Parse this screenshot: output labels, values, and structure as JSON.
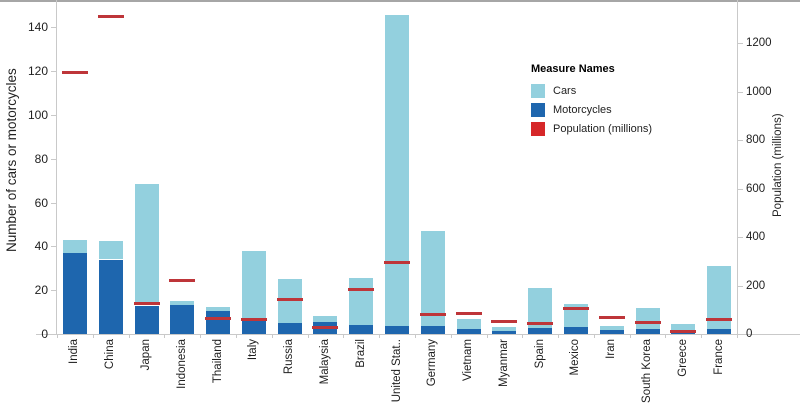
{
  "chart_data": {
    "type": "bar",
    "stacked": true,
    "orientation": "vertical",
    "grid": false,
    "legend_position": "inside-right-upper",
    "categories": [
      "India",
      "China",
      "Japan",
      "Indonesia",
      "Thailand",
      "Italy",
      "Russia",
      "Malaysia",
      "Brazil",
      "United Stat..",
      "Germany",
      "Vietnam",
      "Myanmar",
      "Spain",
      "Mexico",
      "Iran",
      "South Korea",
      "Greece",
      "France"
    ],
    "series": [
      {
        "name": "Motorcycles",
        "color": "#1E66AE",
        "axis": "left",
        "values": [
          37,
          34,
          13,
          13.3,
          10.3,
          6,
          5,
          5.4,
          4,
          3.5,
          3.8,
          2.4,
          1.5,
          2.8,
          3.1,
          1.9,
          2.4,
          1.1,
          2.1
        ]
      },
      {
        "name": "Cars",
        "color": "#93D0DE",
        "axis": "left",
        "values": [
          6,
          8.5,
          55.5,
          1.7,
          2,
          32,
          20,
          2.7,
          21.5,
          142,
          43.2,
          4.5,
          1.6,
          18.1,
          10.8,
          2,
          9.6,
          3.4,
          28.9
        ]
      }
    ],
    "overlay_series": {
      "name": "Population (millions)",
      "mark": "line-segment",
      "color": "#BE3539",
      "axis": "right",
      "values": [
        1080,
        1310,
        128,
        220,
        63,
        58,
        143,
        25,
        184,
        296,
        82,
        83,
        50,
        43,
        106,
        69,
        48,
        11,
        60
      ]
    },
    "left_axis": {
      "title": "Number of cars or motorcycles",
      "ticks": [
        0,
        20,
        40,
        60,
        80,
        100,
        120,
        140
      ],
      "scale_max": 152.4
    },
    "right_axis": {
      "title": "Population (millions)",
      "ticks": [
        0,
        200,
        400,
        600,
        800,
        1000,
        1200
      ],
      "scale_max": 1378
    },
    "legend": {
      "title": "Measure Names",
      "items": [
        {
          "label": "Cars",
          "color": "#93D0DE"
        },
        {
          "label": "Motorcycles",
          "color": "#1E66AE"
        },
        {
          "label": "Population (millions)",
          "color": "#D62729"
        }
      ]
    }
  }
}
